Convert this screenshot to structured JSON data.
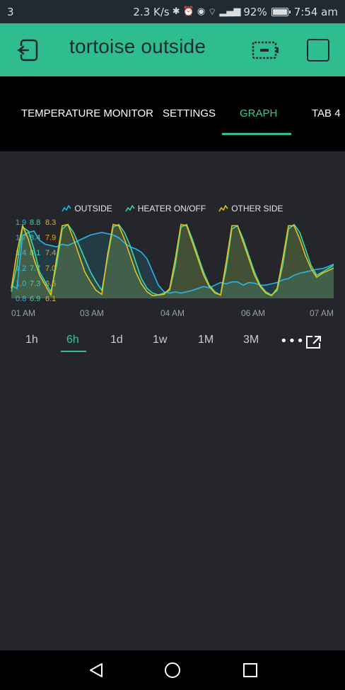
{
  "status": {
    "left": "3",
    "speed": "2.3 K/s",
    "battery_pct": "92%",
    "battery_level": 0.92,
    "time": "7:54 am"
  },
  "appbar": {
    "title": "tortoise outside",
    "accent": "#2fbd8f"
  },
  "tabs": [
    {
      "label": "TEMPERATURE MONITOR",
      "active": false
    },
    {
      "label": "SETTINGS",
      "active": false
    },
    {
      "label": "GRAPH",
      "active": true
    },
    {
      "label": "TAB 4",
      "active": false
    }
  ],
  "chart_data": {
    "type": "line",
    "legend": [
      {
        "name": "OUTSIDE",
        "color": "#29b6e8"
      },
      {
        "name": "HEATER ON/OFF",
        "color": "#3fd6a6"
      },
      {
        "name": "OTHER SIDE",
        "color": "#e8c31c"
      }
    ],
    "x_ticks": [
      "01 AM",
      "03 AM",
      "04 AM",
      "06 AM",
      "07 AM"
    ],
    "y_ticks_outside": [
      "1.9",
      "1.7",
      "1.4",
      "1.2",
      "1.0",
      "0.8"
    ],
    "y_ticks_heater": [
      "8.8",
      "8.4",
      "8.1",
      "7.7",
      "7.3",
      "6.9"
    ],
    "y_ticks_other": [
      "8.3",
      "7.9",
      "7.4",
      "7.0",
      "6.5",
      "6.1"
    ],
    "tick_colors": [
      "#29b6e8",
      "#3fd6a6",
      "#e8a91c"
    ],
    "series": [
      {
        "name": "OUTSIDE",
        "color": "#29b6e8",
        "values": [
          1.0,
          0.95,
          1.75,
          1.8,
          1.82,
          1.68,
          1.62,
          1.6,
          1.58,
          1.62,
          1.6,
          1.64,
          1.68,
          1.72,
          1.76,
          1.78,
          1.8,
          1.78,
          1.76,
          1.72,
          1.64,
          1.58,
          1.55,
          1.5,
          1.4,
          1.2,
          1.0,
          0.9,
          0.88,
          0.9,
          0.88,
          0.9,
          0.92,
          0.95,
          0.98,
          0.96,
          1.0,
          1.04,
          1.02,
          1.05,
          1.05,
          1.0,
          1.04,
          1.03,
          1.0,
          1.0,
          1.02,
          1.04,
          1.08,
          1.1,
          1.15,
          1.18,
          1.2,
          1.22,
          1.24,
          1.25,
          1.28,
          1.32
        ]
      },
      {
        "name": "HEATER ON/OFF",
        "values": [
          0.9,
          1.3,
          1.88,
          1.82,
          1.55,
          1.2,
          1.05,
          0.9,
          1.3,
          1.85,
          1.92,
          1.8,
          1.6,
          1.4,
          1.2,
          1.05,
          0.92,
          1.4,
          1.88,
          1.92,
          1.8,
          1.6,
          1.35,
          1.1,
          0.95,
          0.88,
          0.85,
          0.88,
          0.92,
          1.3,
          1.88,
          1.92,
          1.7,
          1.45,
          1.2,
          1.0,
          0.9,
          0.85,
          1.25,
          1.85,
          1.9,
          1.7,
          1.45,
          1.2,
          1.0,
          0.9,
          0.85,
          0.92,
          1.3,
          1.85,
          1.92,
          1.8,
          1.55,
          1.3,
          1.15,
          1.2,
          1.25,
          1.3
        ],
        "color": "#3fd6a6"
      },
      {
        "name": "OTHER SIDE",
        "color": "#e8c31c",
        "values": [
          0.95,
          1.5,
          1.9,
          1.7,
          1.4,
          1.15,
          1.0,
          0.85,
          1.4,
          1.9,
          1.92,
          1.7,
          1.45,
          1.2,
          1.05,
          0.92,
          0.86,
          1.45,
          1.92,
          1.9,
          1.7,
          1.45,
          1.2,
          1.02,
          0.9,
          0.84,
          0.85,
          0.86,
          0.95,
          1.4,
          1.92,
          1.9,
          1.65,
          1.4,
          1.15,
          0.98,
          0.88,
          0.85,
          1.35,
          1.9,
          1.9,
          1.65,
          1.4,
          1.15,
          0.98,
          0.88,
          0.84,
          0.95,
          1.4,
          1.9,
          1.9,
          1.7,
          1.45,
          1.25,
          1.12,
          1.18,
          1.22,
          1.26
        ]
      }
    ],
    "ylim": [
      0.8,
      2.0
    ]
  },
  "ranges": [
    {
      "label": "1h",
      "active": false
    },
    {
      "label": "6h",
      "active": true
    },
    {
      "label": "1d",
      "active": false
    },
    {
      "label": "1w",
      "active": false
    },
    {
      "label": "1M",
      "active": false
    },
    {
      "label": "3M",
      "active": false
    }
  ],
  "more_label": "•••"
}
